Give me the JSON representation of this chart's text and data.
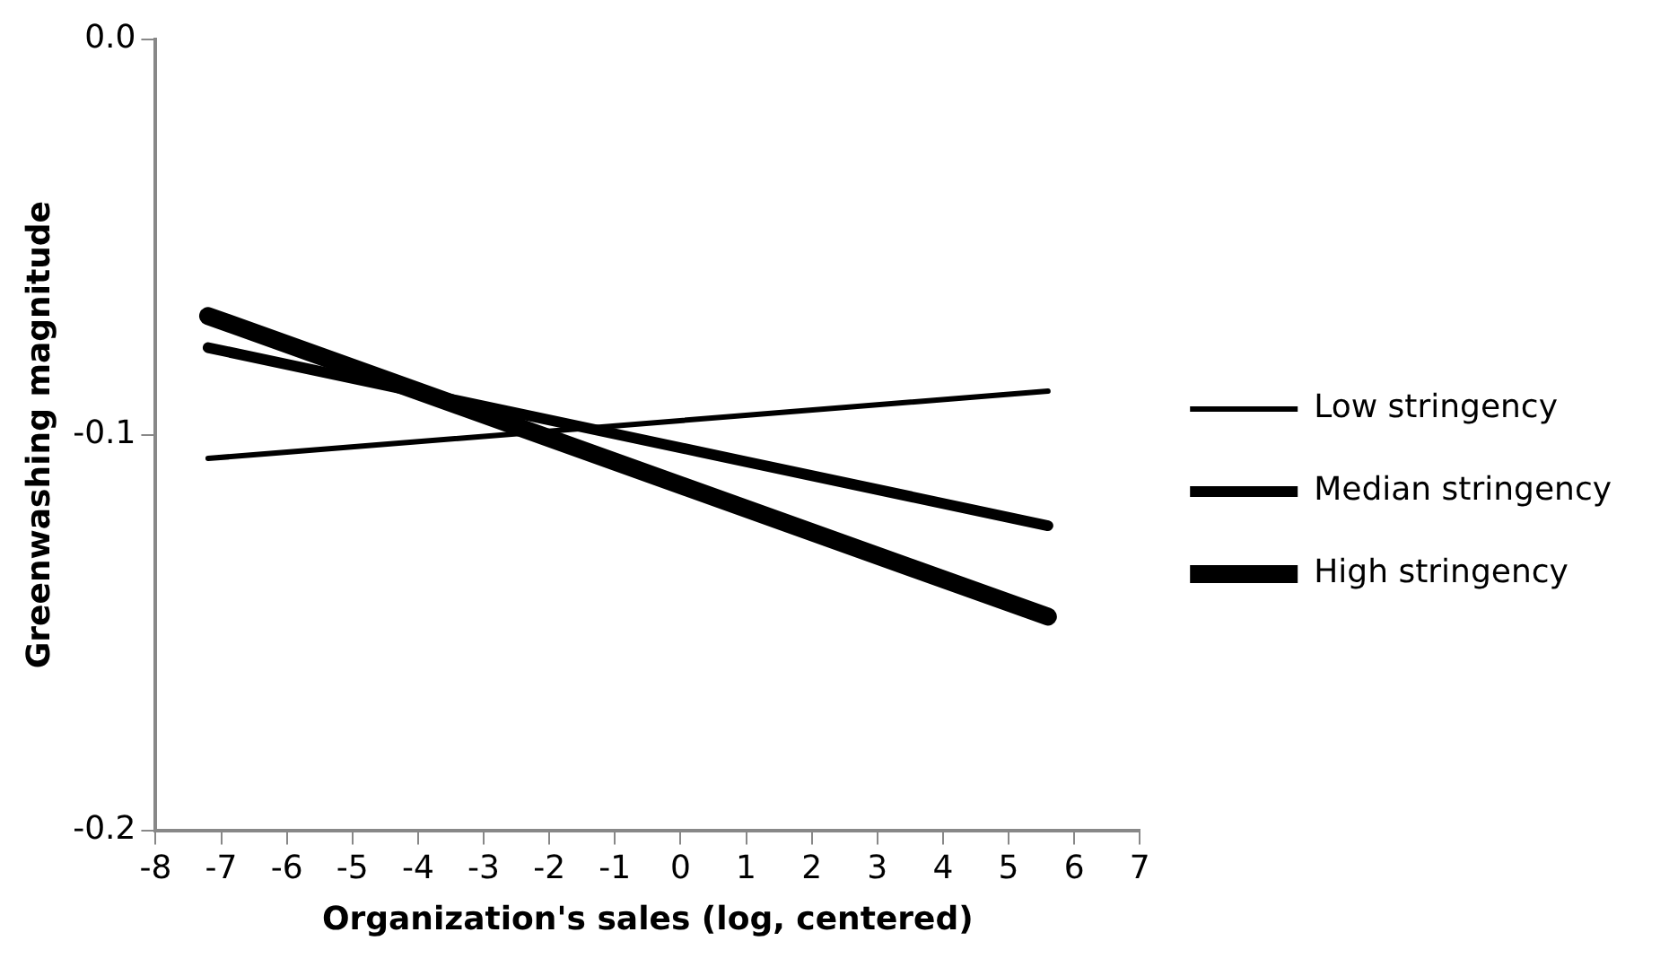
{
  "chart_data": {
    "type": "line",
    "xlabel": "Organization's sales (log, centered)",
    "ylabel": "Greenwashing magnitude",
    "x": [
      -7.2,
      5.6
    ],
    "series": [
      {
        "name": "Low stringency",
        "color": "#000000",
        "values": [
          -0.106,
          -0.089
        ]
      },
      {
        "name": "Median stringency",
        "color": "#000000",
        "values": [
          -0.078,
          -0.123
        ]
      },
      {
        "name": "High stringency",
        "color": "#000000",
        "values": [
          -0.07,
          -0.146
        ]
      }
    ],
    "xlim": [
      -8,
      7
    ],
    "xticks": [
      -8,
      -7,
      -6,
      -5,
      -4,
      -3,
      -2,
      -1,
      0,
      1,
      2,
      3,
      4,
      5,
      6,
      7
    ],
    "ylim": [
      -0.2,
      0
    ],
    "yticks": [
      {
        "value": -0.2,
        "label": "-0.2"
      },
      {
        "value": -0.1,
        "label": "-0.1"
      },
      {
        "value": 0,
        "label": "0.0"
      }
    ],
    "grid": false,
    "legend": "right",
    "marker": "none",
    "line_style": "solid"
  }
}
